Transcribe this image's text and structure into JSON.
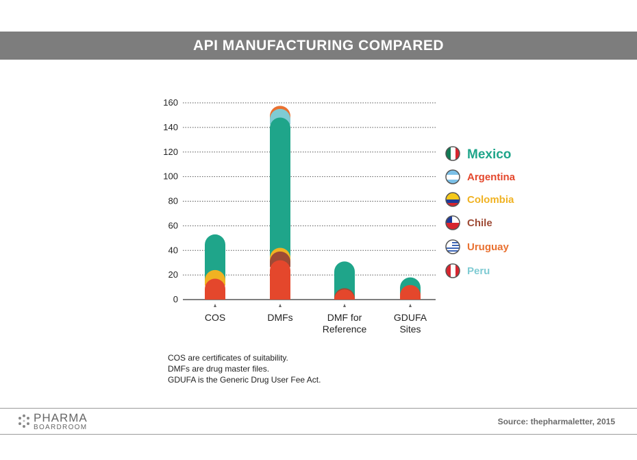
{
  "header": {
    "title": "API MANUFACTURING COMPARED"
  },
  "notes": [
    "COS are certificates of suitability.",
    "DMFs are drug master files.",
    "GDUFA is the Generic Drug User Fee Act."
  ],
  "footer": {
    "brand_top": "PHARMA",
    "brand_bottom": "BOARDROOM",
    "source": "Source: thepharmaletter, 2015"
  },
  "chart_data": {
    "type": "bar",
    "stacked": true,
    "categories": [
      [
        "COS"
      ],
      [
        "DMFs"
      ],
      [
        "DMF for",
        "Reference"
      ],
      [
        "GDUFA",
        "Sites"
      ]
    ],
    "ylim": [
      0,
      160
    ],
    "yticks": [
      0,
      20,
      40,
      60,
      80,
      100,
      120,
      140,
      160
    ],
    "grid": true,
    "legend_position": "right",
    "series": [
      {
        "name": "Argentina",
        "color": "#e4472c",
        "values": [
          17,
          32,
          1,
          7
        ]
      },
      {
        "name": "Chile",
        "color": "#9e4a35",
        "values": [
          0,
          3,
          1,
          0
        ]
      },
      {
        "name": "Colombia",
        "color": "#f0b222",
        "values": [
          3,
          3,
          0,
          0
        ]
      },
      {
        "name": "Mexico",
        "color": "#1fa58a",
        "values": [
          33,
          110,
          29,
          11
        ]
      },
      {
        "name": "Peru",
        "color": "#7fcbd3",
        "values": [
          0,
          3,
          0,
          0
        ]
      },
      {
        "name": "Uruguay",
        "color": "#e97131",
        "values": [
          0,
          2,
          0,
          0
        ]
      }
    ],
    "legend": [
      {
        "name": "Mexico",
        "color": "#1fa58a",
        "flag": "mexico-flag-icon"
      },
      {
        "name": "Argentina",
        "color": "#e4472c",
        "flag": "argentina-flag-icon"
      },
      {
        "name": "Colombia",
        "color": "#f0b222",
        "flag": "colombia-flag-icon"
      },
      {
        "name": "Chile",
        "color": "#9e4a35",
        "flag": "chile-flag-icon"
      },
      {
        "name": "Uruguay",
        "color": "#e97131",
        "flag": "uruguay-flag-icon"
      },
      {
        "name": "Peru",
        "color": "#7fcbd3",
        "flag": "peru-flag-icon"
      }
    ]
  }
}
